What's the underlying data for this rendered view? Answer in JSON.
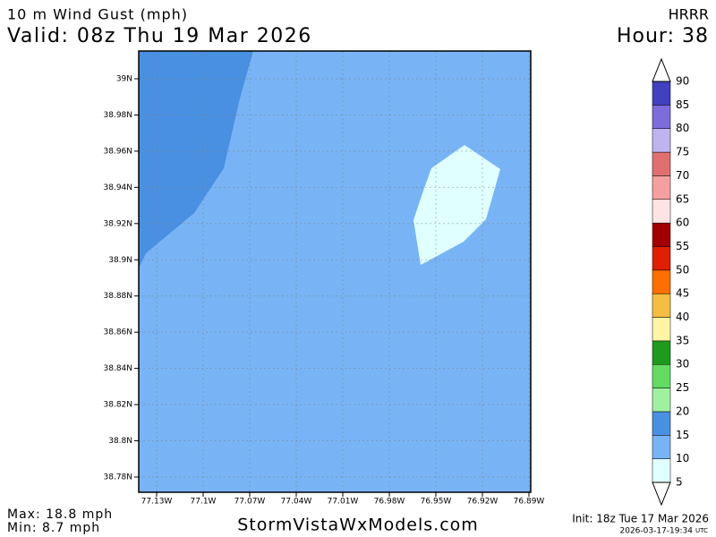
{
  "header": {
    "title": "10 m Wind Gust (mph)",
    "valid": "Valid: 08z Thu 19 Mar 2026",
    "model": "HRRR",
    "hour": "Hour: 38"
  },
  "map": {
    "lat_labels": [
      "39N",
      "38.98N",
      "38.96N",
      "38.94N",
      "38.92N",
      "38.9N",
      "38.88N",
      "38.86N",
      "38.84N",
      "38.82N",
      "38.8N",
      "38.78N"
    ],
    "lon_labels": [
      "77.13W",
      "77.1W",
      "77.07W",
      "77.04W",
      "77.01W",
      "76.98W",
      "76.95W",
      "76.92W",
      "76.89W"
    ]
  },
  "colorbar": {
    "levels": [
      5,
      10,
      15,
      20,
      25,
      30,
      35,
      40,
      45,
      50,
      55,
      60,
      65,
      70,
      75,
      80,
      85,
      90
    ],
    "colors": [
      "#e0ffff",
      "#78b4f5",
      "#4a90e2",
      "#a0f0a0",
      "#64dc64",
      "#1e9b1e",
      "#fff5a5",
      "#f5be41",
      "#ff6e00",
      "#e01e00",
      "#a00000",
      "#fde4e4",
      "#f5a0a0",
      "#e07070",
      "#c0b4f0",
      "#7c6cdc",
      "#4040c0"
    ]
  },
  "footer": {
    "max": "Max: 18.8 mph",
    "min": "Min: 8.7 mph",
    "site": "StormVistaWxModels.com",
    "init": "Init: 18z Tue 17 Mar 2026",
    "timestamp": "2026-03-17-19:34",
    "utc": "UTC"
  }
}
